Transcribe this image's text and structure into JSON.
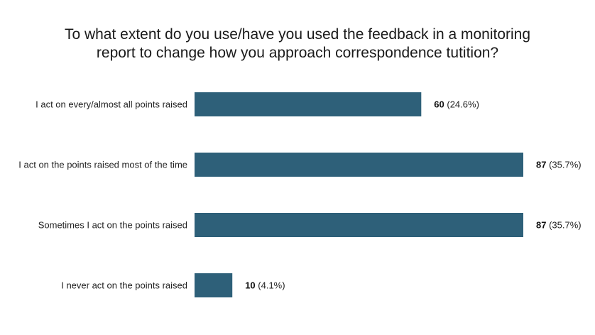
{
  "chart_data": {
    "type": "bar",
    "orientation": "horizontal",
    "title_lines": [
      "To what extent do you use/have you used the feedback in a monitoring",
      "report to change how you approach correspondence tutition?"
    ],
    "categories": [
      "I act on every/almost all points raised",
      "I act on the points raised most of the time",
      "Sometimes I act on the points raised",
      "I never act on the points raised"
    ],
    "values": [
      60,
      87,
      87,
      10
    ],
    "percent_labels": [
      "(24.6%)",
      "(35.7%)",
      "(35.7%)",
      "(4.1%)"
    ],
    "xlim": [
      0,
      87
    ],
    "grid": false,
    "bar_color": "#2e6079"
  }
}
